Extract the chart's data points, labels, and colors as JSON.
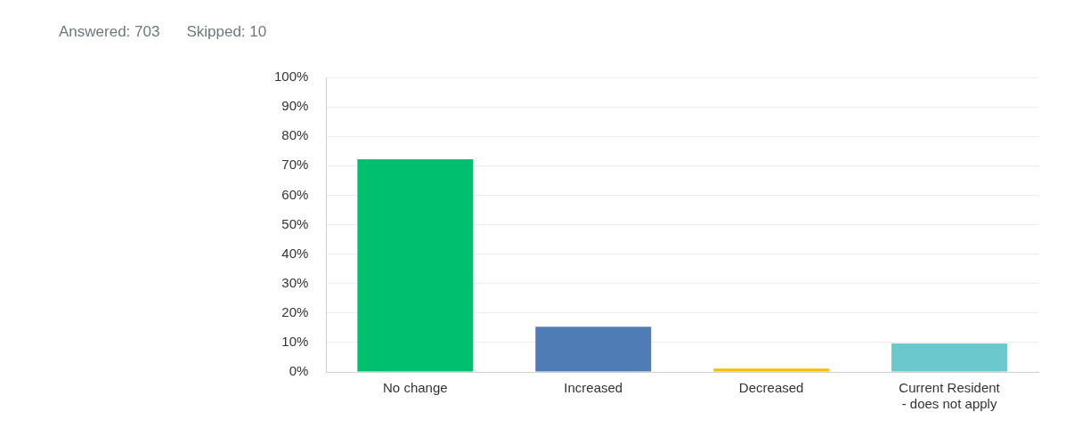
{
  "chart_data": {
    "type": "bar",
    "annotations": [
      "Answered: 703",
      "Skipped: 10"
    ],
    "categories": [
      "No change",
      "Increased",
      "Decreased",
      "Current Resident - does not apply"
    ],
    "values": [
      72.2,
      15.3,
      1.1,
      9.7
    ],
    "colors": [
      "#00bf6f",
      "#507cb6",
      "#f9be00",
      "#6bc8cd"
    ],
    "ylim": [
      0,
      100
    ],
    "yticks": [
      {
        "value": 0,
        "label": "0%"
      },
      {
        "value": 10,
        "label": "10%"
      },
      {
        "value": 20,
        "label": "20%"
      },
      {
        "value": 30,
        "label": "30%"
      },
      {
        "value": 40,
        "label": "40%"
      },
      {
        "value": 50,
        "label": "50%"
      },
      {
        "value": 60,
        "label": "60%"
      },
      {
        "value": 70,
        "label": "70%"
      },
      {
        "value": 80,
        "label": "80%"
      },
      {
        "value": 90,
        "label": "90%"
      },
      {
        "value": 100,
        "label": "100%"
      }
    ],
    "grid": "y",
    "legend": false
  }
}
